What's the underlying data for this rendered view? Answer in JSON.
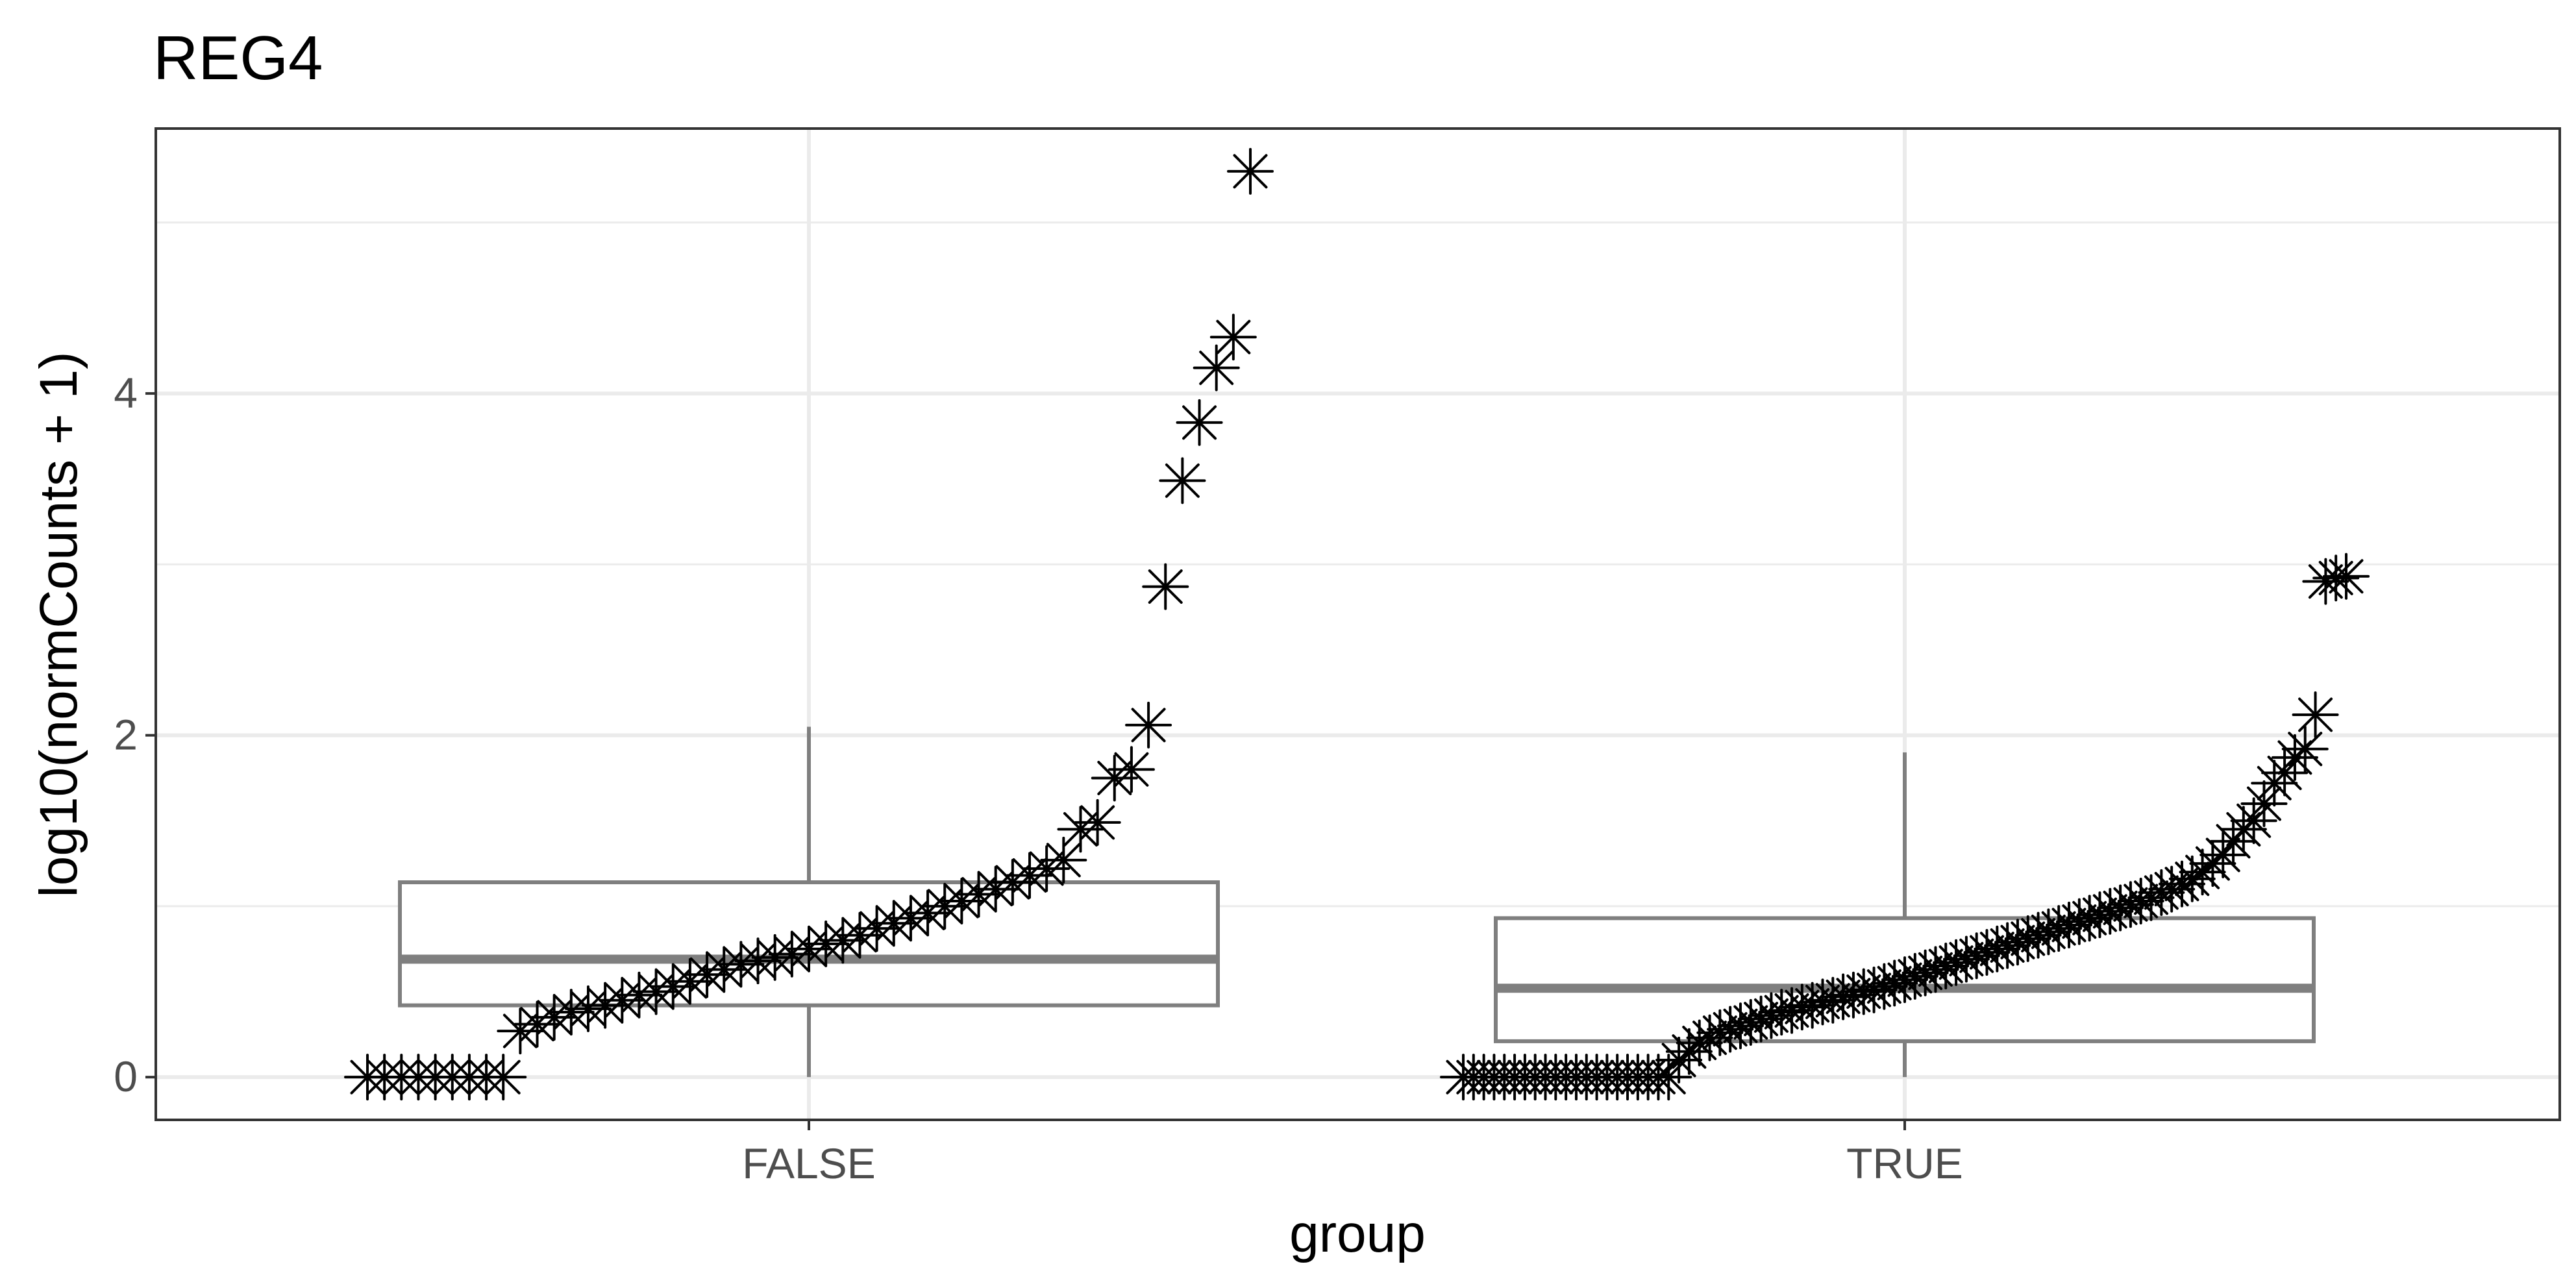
{
  "chart_data": {
    "type": "box",
    "title": "REG4",
    "xlabel": "group",
    "ylabel": "log10(normCounts + 1)",
    "categories": [
      "FALSE",
      "TRUE"
    ],
    "y_ticks": [
      0,
      2,
      4
    ],
    "ylim": [
      -0.25,
      5.55
    ],
    "grid": true,
    "colors": {
      "box": "#7f7f7f",
      "points": "#000000",
      "grid": "#ebebeb",
      "panel_border": "#333333"
    },
    "boxes": [
      {
        "category": "FALSE",
        "min": 0.0,
        "q1": 0.42,
        "median": 0.69,
        "q3": 1.14,
        "max": 2.05
      },
      {
        "category": "TRUE",
        "min": 0.0,
        "q1": 0.21,
        "median": 0.52,
        "q3": 0.93,
        "max": 1.9
      }
    ],
    "series": [
      {
        "category": "FALSE",
        "values": [
          0,
          0,
          0,
          0,
          0,
          0,
          0,
          0,
          0,
          0.27,
          0.31,
          0.35,
          0.38,
          0.4,
          0.42,
          0.45,
          0.48,
          0.5,
          0.53,
          0.56,
          0.6,
          0.63,
          0.66,
          0.68,
          0.7,
          0.72,
          0.75,
          0.78,
          0.8,
          0.83,
          0.87,
          0.9,
          0.93,
          0.96,
          1.0,
          1.03,
          1.07,
          1.1,
          1.14,
          1.18,
          1.22,
          1.27,
          1.45,
          1.49,
          1.75,
          1.8,
          2.06,
          2.87,
          3.49,
          3.83,
          4.15,
          4.33,
          5.3
        ]
      },
      {
        "category": "TRUE",
        "values": [
          0,
          0,
          0,
          0,
          0,
          0,
          0,
          0,
          0,
          0,
          0,
          0,
          0,
          0,
          0,
          0,
          0,
          0,
          0,
          0,
          0,
          0.1,
          0.15,
          0.2,
          0.23,
          0.26,
          0.28,
          0.3,
          0.32,
          0.34,
          0.36,
          0.38,
          0.39,
          0.41,
          0.42,
          0.44,
          0.45,
          0.47,
          0.48,
          0.5,
          0.51,
          0.53,
          0.55,
          0.57,
          0.59,
          0.61,
          0.63,
          0.65,
          0.67,
          0.69,
          0.71,
          0.73,
          0.75,
          0.77,
          0.79,
          0.81,
          0.83,
          0.85,
          0.87,
          0.89,
          0.91,
          0.93,
          0.95,
          0.97,
          0.99,
          1.01,
          1.03,
          1.05,
          1.08,
          1.1,
          1.13,
          1.16,
          1.2,
          1.25,
          1.3,
          1.38,
          1.45,
          1.5,
          1.6,
          1.72,
          1.78,
          1.87,
          1.92,
          2.12,
          2.9,
          2.92,
          2.93
        ]
      }
    ]
  }
}
